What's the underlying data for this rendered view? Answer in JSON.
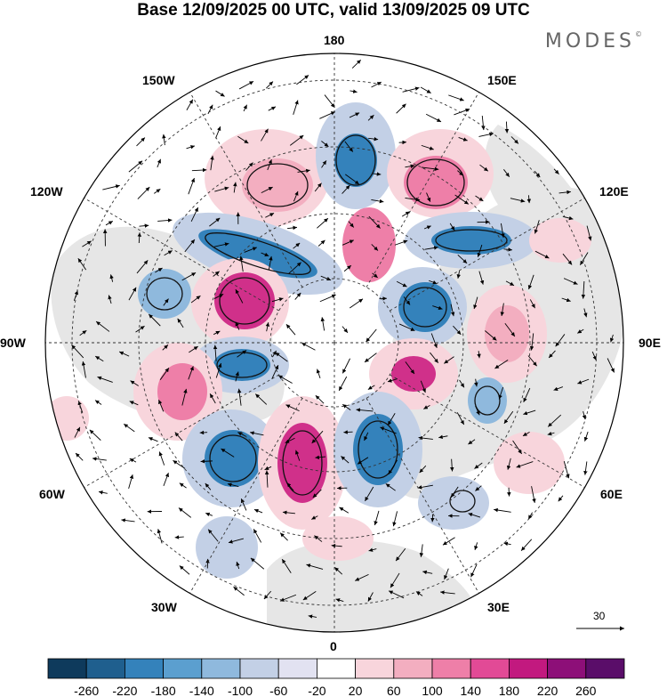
{
  "title": "Base 12/09/2025 00 UTC, valid 13/09/2025 09 UTC",
  "brand": {
    "name": "MODES",
    "mark": "©"
  },
  "longitude_labels": {
    "lon_180": "180",
    "lon_150e": "150E",
    "lon_120e": "120E",
    "lon_90e": "90E",
    "lon_60e": "60E",
    "lon_30e": "30E",
    "lon_0": "0",
    "lon_30w": "30W",
    "lon_60w": "60W",
    "lon_90w": "90W",
    "lon_120w": "120W",
    "lon_150w": "150W"
  },
  "reference_vector": {
    "label": "30"
  },
  "colorbar": {
    "labels": [
      "-260",
      "-220",
      "-180",
      "-140",
      "-100",
      "-60",
      "-20",
      "20",
      "60",
      "100",
      "140",
      "180",
      "220",
      "260"
    ],
    "colors": [
      "#0e3a5c",
      "#1f5f8e",
      "#3482bb",
      "#5b9fcf",
      "#8fb9dd",
      "#c3d0e6",
      "#e2e2f1",
      "#ffffff",
      "#f8d5dc",
      "#f3aec0",
      "#ee7fa8",
      "#e24a96",
      "#c2197f",
      "#8d0f78",
      "#5a0d69"
    ]
  },
  "anomaly_colors": {
    "negative_deep": "#2f6fa8",
    "negative_mid": "#7ba7d2",
    "negative_light": "#c3d0e6",
    "positive_light": "#f8d5dc",
    "positive_mid": "#ef8fb3",
    "positive_deep": "#d0308a",
    "land": "#e8e8e8",
    "ocean": "#ffffff"
  }
}
